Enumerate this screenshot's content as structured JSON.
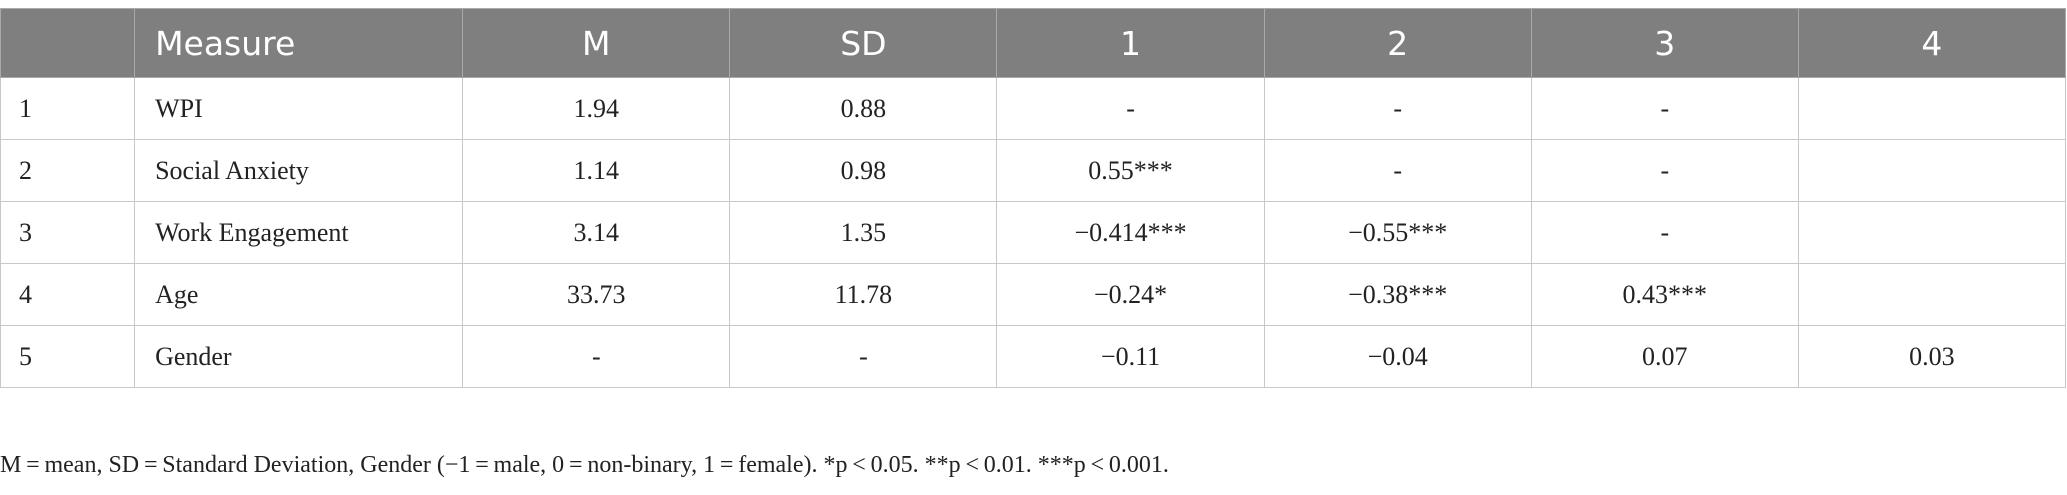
{
  "table": {
    "headers": [
      "",
      "Measure",
      "M",
      "SD",
      "1",
      "2",
      "3",
      "4"
    ],
    "rows": [
      [
        "1",
        "WPI",
        "1.94",
        "0.88",
        "-",
        "-",
        "-",
        ""
      ],
      [
        "2",
        "Social Anxiety",
        "1.14",
        "0.98",
        "0.55***",
        "-",
        "-",
        ""
      ],
      [
        "3",
        "Work Engagement",
        "3.14",
        "1.35",
        "−0.414***",
        "−0.55***",
        "-",
        ""
      ],
      [
        "4",
        "Age",
        "33.73",
        "11.78",
        "−0.24*",
        "−0.38***",
        "0.43***",
        ""
      ],
      [
        "5",
        "Gender",
        "-",
        "-",
        "−0.11",
        "−0.04",
        "0.07",
        "0.03"
      ]
    ]
  },
  "note": "M = mean, SD = Standard Deviation, Gender (−1 = male, 0 = non-binary, 1 = female). *p < 0.05. **p < 0.01. ***p < 0.001."
}
